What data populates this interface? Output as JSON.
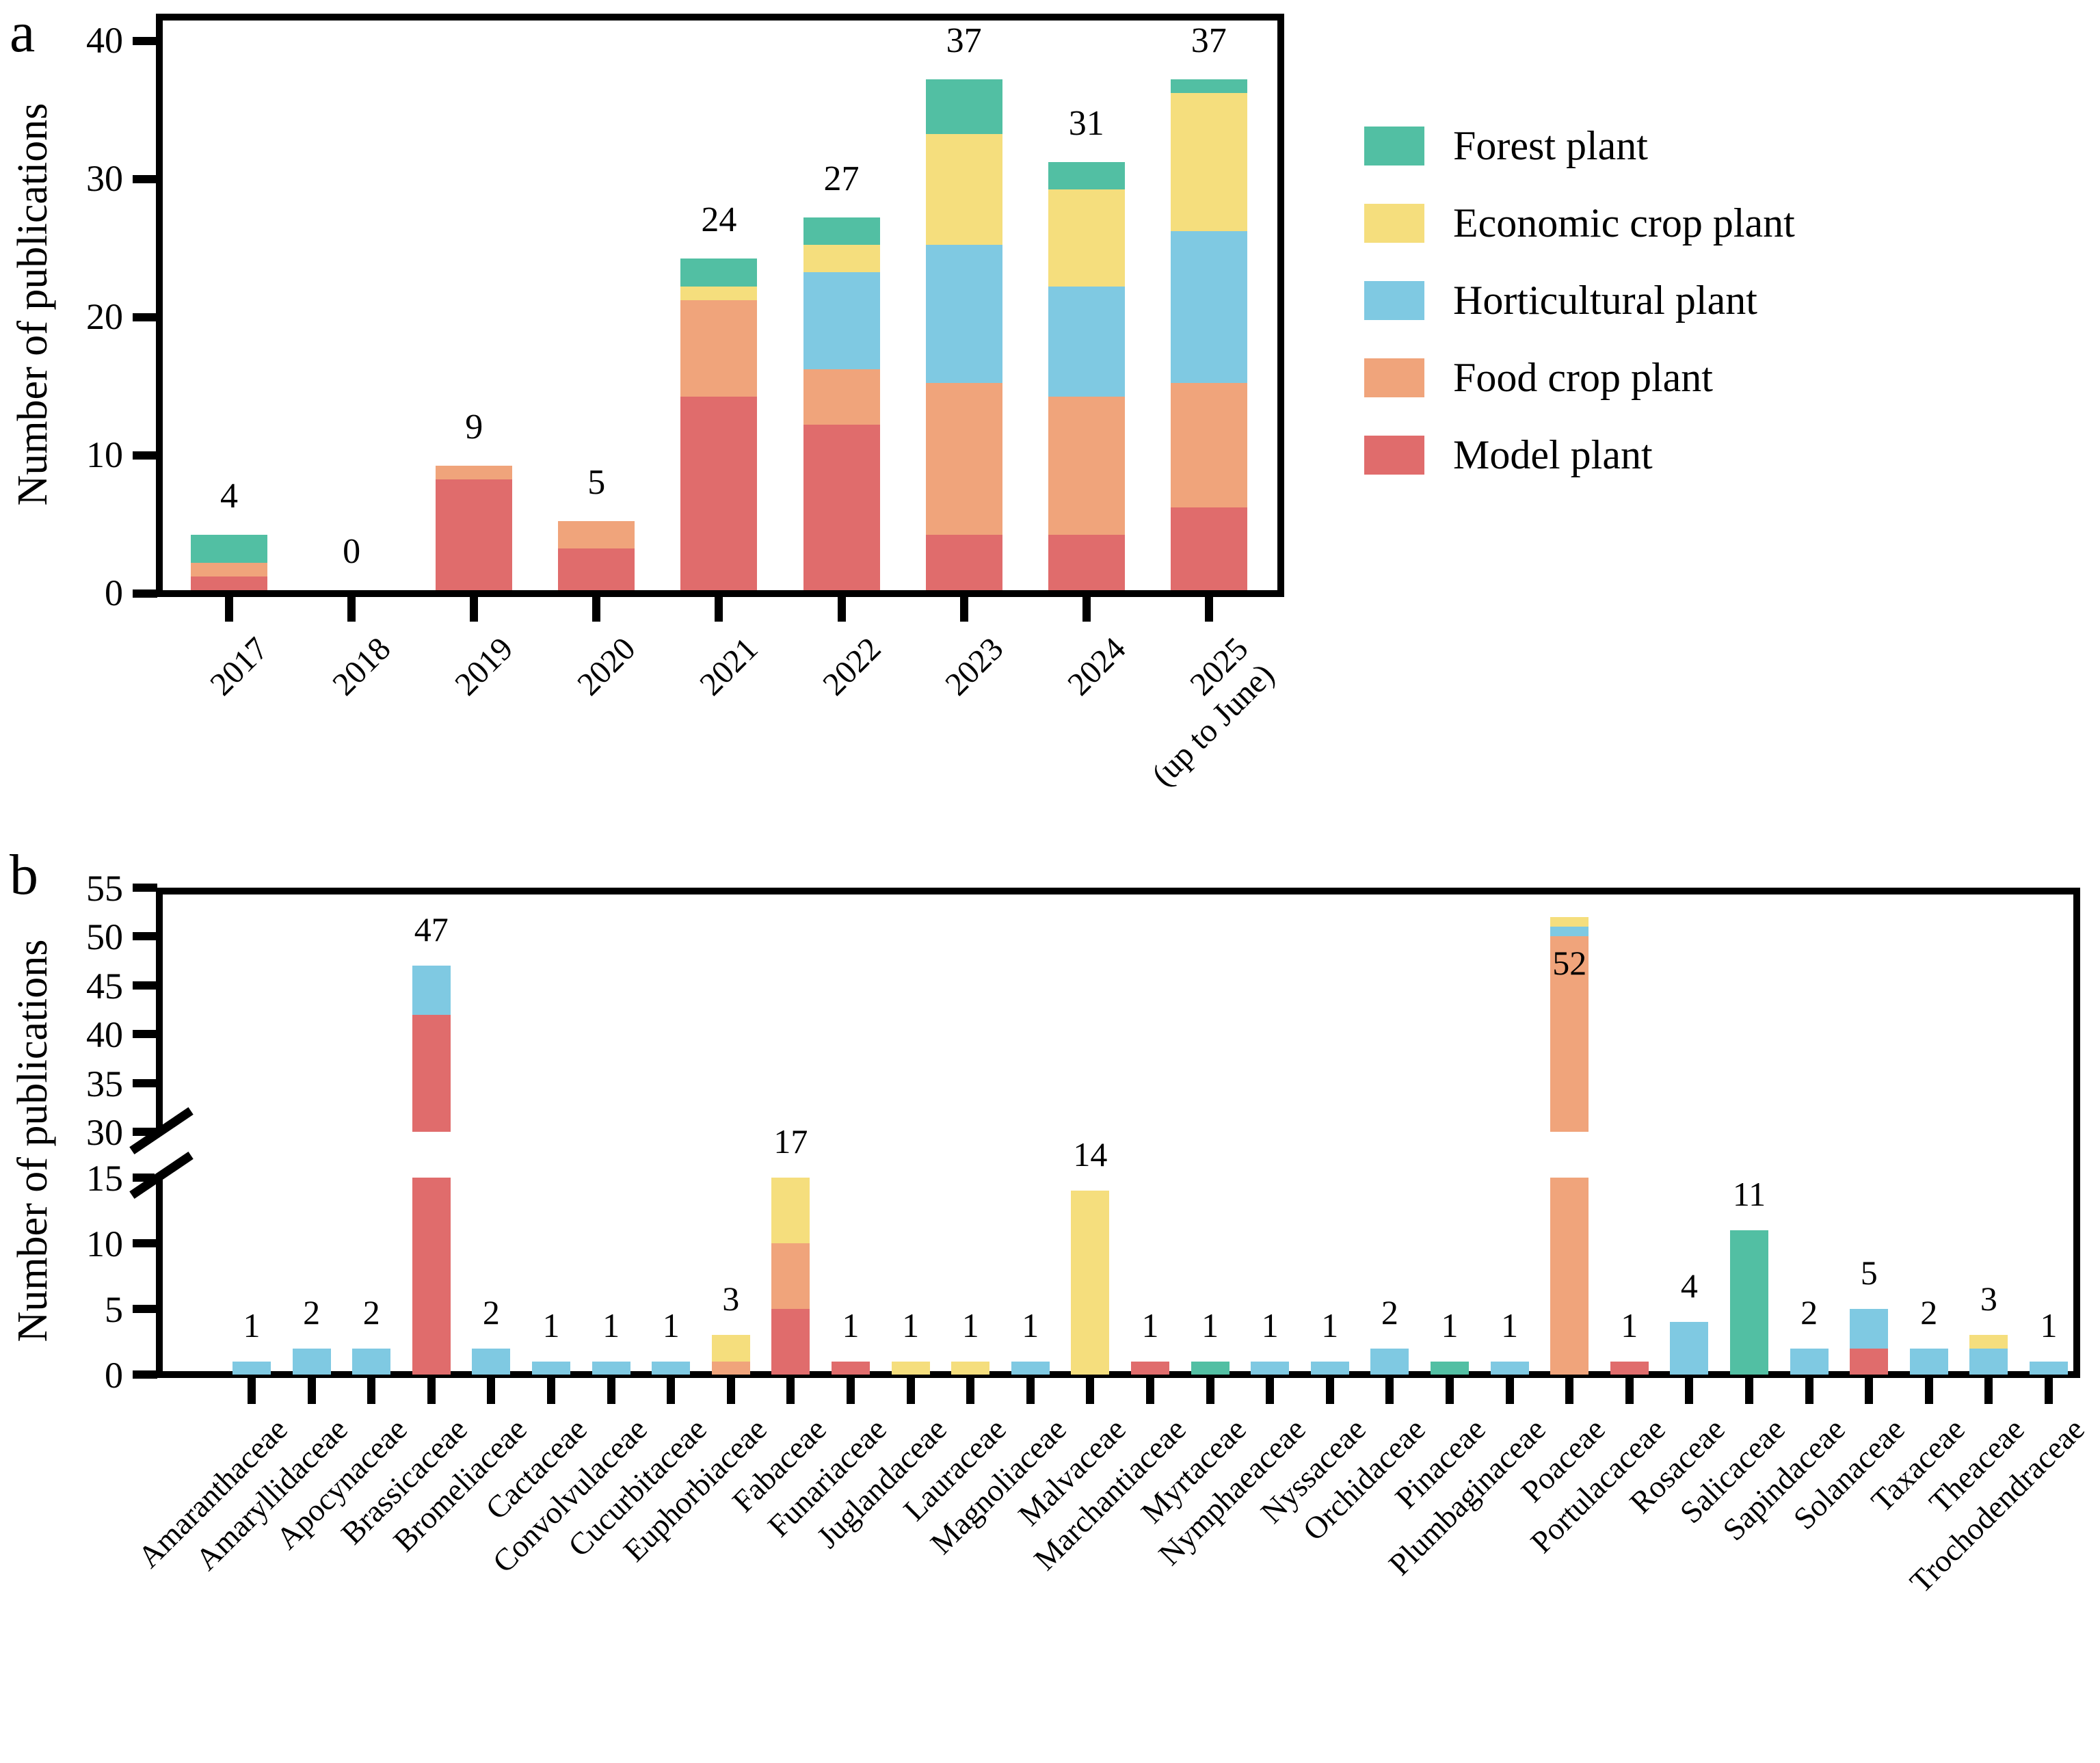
{
  "figure": {
    "panel_a_letter": "a",
    "panel_b_letter": "b",
    "ylabel": "Number of publications"
  },
  "colors": {
    "forest": "#52BFA3",
    "economic": "#F5DE7D",
    "horticultural": "#7FC9E2",
    "food": "#F0A47B",
    "model": "#E06C6C",
    "axis": "#000000"
  },
  "legend": [
    {
      "key": "forest",
      "label": "Forest plant"
    },
    {
      "key": "economic",
      "label": "Economic crop plant"
    },
    {
      "key": "horticultural",
      "label": "Horticultural plant"
    },
    {
      "key": "food",
      "label": "Food crop plant"
    },
    {
      "key": "model",
      "label": "Model plant"
    }
  ],
  "chart_data": [
    {
      "id": "panel-a",
      "type": "bar",
      "stacked": true,
      "title": "",
      "xlabel": "",
      "ylabel": "Number of publications",
      "ylim": [
        0,
        40
      ],
      "yticks": [
        0,
        10,
        20,
        30,
        40
      ],
      "grid": false,
      "legend_position": "right",
      "categories": [
        "2017",
        "2018",
        "2019",
        "2020",
        "2021",
        "2022",
        "2023",
        "2024",
        "2025\n(up to June)"
      ],
      "series": [
        {
          "key": "model",
          "name": "Model plant",
          "values": [
            1,
            0,
            8,
            3,
            14,
            12,
            4,
            4,
            6
          ]
        },
        {
          "key": "food",
          "name": "Food crop plant",
          "values": [
            1,
            0,
            1,
            2,
            7,
            4,
            11,
            10,
            9
          ]
        },
        {
          "key": "horticultural",
          "name": "Horticultural plant",
          "values": [
            0,
            0,
            0,
            0,
            0,
            7,
            10,
            8,
            11
          ]
        },
        {
          "key": "economic",
          "name": "Economic crop plant",
          "values": [
            0,
            0,
            0,
            0,
            1,
            2,
            8,
            7,
            10
          ]
        },
        {
          "key": "forest",
          "name": "Forest plant",
          "values": [
            2,
            0,
            0,
            0,
            2,
            2,
            4,
            2,
            1
          ]
        }
      ],
      "totals": [
        4,
        0,
        9,
        5,
        24,
        27,
        37,
        31,
        37
      ]
    },
    {
      "id": "panel-b",
      "type": "bar",
      "stacked": true,
      "title": "",
      "xlabel": "",
      "ylabel": "Number of publications",
      "broken_axis": {
        "lower_range": [
          0,
          15
        ],
        "upper_range": [
          30,
          55
        ]
      },
      "yticks_lower": [
        0,
        5,
        10,
        15
      ],
      "yticks_upper": [
        30,
        35,
        40,
        45,
        50,
        55
      ],
      "grid": false,
      "families": [
        {
          "family": "Amaranthaceae",
          "total": 1,
          "label_inside": false,
          "segments": {
            "horticultural": 1
          }
        },
        {
          "family": "Amaryllidaceae",
          "total": 2,
          "label_inside": false,
          "segments": {
            "horticultural": 2
          }
        },
        {
          "family": "Apocynaceae",
          "total": 2,
          "label_inside": false,
          "segments": {
            "horticultural": 2
          }
        },
        {
          "family": "Brassicaceae",
          "total": 47,
          "label_inside": false,
          "segments": {
            "model": 42,
            "horticultural": 5
          }
        },
        {
          "family": "Bromeliaceae",
          "total": 2,
          "label_inside": false,
          "segments": {
            "horticultural": 2
          }
        },
        {
          "family": "Cactaceae",
          "total": 1,
          "label_inside": false,
          "segments": {
            "horticultural": 1
          }
        },
        {
          "family": "Convolvulaceae",
          "total": 1,
          "label_inside": false,
          "segments": {
            "horticultural": 1
          }
        },
        {
          "family": "Cucurbitaceae",
          "total": 1,
          "label_inside": false,
          "segments": {
            "horticultural": 1
          }
        },
        {
          "family": "Euphorbiaceae",
          "total": 3,
          "label_inside": false,
          "segments": {
            "food": 1,
            "economic": 2
          }
        },
        {
          "family": "Fabaceae",
          "total": 17,
          "label_inside": false,
          "segments": {
            "model": 5,
            "food": 5,
            "economic": 7
          }
        },
        {
          "family": "Funariaceae",
          "total": 1,
          "label_inside": false,
          "segments": {
            "model": 1
          }
        },
        {
          "family": "Juglandaceae",
          "total": 1,
          "label_inside": false,
          "segments": {
            "economic": 1
          }
        },
        {
          "family": "Lauraceae",
          "total": 1,
          "label_inside": false,
          "segments": {
            "economic": 1
          }
        },
        {
          "family": "Magnoliaceae",
          "total": 1,
          "label_inside": false,
          "segments": {
            "horticultural": 1
          }
        },
        {
          "family": "Malvaceae",
          "total": 14,
          "label_inside": false,
          "segments": {
            "economic": 14
          }
        },
        {
          "family": "Marchantiaceae",
          "total": 1,
          "label_inside": false,
          "segments": {
            "model": 1
          }
        },
        {
          "family": "Myrtaceae",
          "total": 1,
          "label_inside": false,
          "segments": {
            "forest": 1
          }
        },
        {
          "family": "Nymphaeaceae",
          "total": 1,
          "label_inside": false,
          "segments": {
            "horticultural": 1
          }
        },
        {
          "family": "Nyssaceae",
          "total": 1,
          "label_inside": false,
          "segments": {
            "horticultural": 1
          }
        },
        {
          "family": "Orchidaceae",
          "total": 2,
          "label_inside": false,
          "segments": {
            "horticultural": 2
          }
        },
        {
          "family": "Pinaceae",
          "total": 1,
          "label_inside": false,
          "segments": {
            "forest": 1
          }
        },
        {
          "family": "Plumbaginaceae",
          "total": 1,
          "label_inside": false,
          "segments": {
            "horticultural": 1
          }
        },
        {
          "family": "Poaceae",
          "total": 52,
          "label_inside": true,
          "segments": {
            "food": 50,
            "horticultural": 1,
            "economic": 1
          }
        },
        {
          "family": "Portulacaceae",
          "total": 1,
          "label_inside": false,
          "segments": {
            "model": 1
          }
        },
        {
          "family": "Rosaceae",
          "total": 4,
          "label_inside": false,
          "segments": {
            "horticultural": 4
          }
        },
        {
          "family": "Salicaceae",
          "total": 11,
          "label_inside": false,
          "segments": {
            "forest": 11
          }
        },
        {
          "family": "Sapindaceae",
          "total": 2,
          "label_inside": false,
          "segments": {
            "horticultural": 2
          }
        },
        {
          "family": "Solanaceae",
          "total": 5,
          "label_inside": false,
          "segments": {
            "model": 2,
            "horticultural": 3
          }
        },
        {
          "family": "Taxaceae",
          "total": 2,
          "label_inside": false,
          "segments": {
            "horticultural": 2
          }
        },
        {
          "family": "Theaceae",
          "total": 3,
          "label_inside": false,
          "segments": {
            "horticultural": 2,
            "economic": 1
          }
        },
        {
          "family": "Trochodendraceae",
          "total": 1,
          "label_inside": false,
          "segments": {
            "horticultural": 1
          }
        }
      ]
    }
  ]
}
